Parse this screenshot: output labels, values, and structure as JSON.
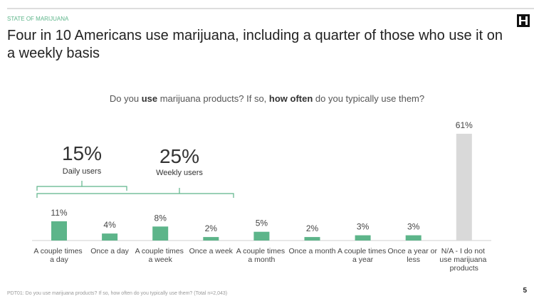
{
  "header": "STATE OF MARIJUANA",
  "title": "Four in 10 Americans use marijuana, including a quarter of those who use it on a weekly basis",
  "page_number": "5",
  "footnote": "PDT01: Do you use marijuana products? If so, how often do you typically use them? (Total n=2,043)",
  "chart_data": {
    "type": "bar",
    "subtitle_parts": [
      "Do you ",
      "use",
      " marijuana products? If so, ",
      "how often",
      " do you typically use them?"
    ],
    "categories": [
      "A couple times a day",
      "Once a day",
      "A couple times a week",
      "Once a week",
      "A couple times a month",
      "Once a month",
      "A couple times a year",
      "Once a year or less",
      "N/A - I do not use marijuana products"
    ],
    "values": [
      11,
      4,
      8,
      2,
      5,
      2,
      3,
      3,
      61
    ],
    "value_labels": [
      "11%",
      "4%",
      "8%",
      "2%",
      "5%",
      "2%",
      "3%",
      "3%",
      "61%"
    ],
    "colors": [
      "#5db58a",
      "#5db58a",
      "#5db58a",
      "#5db58a",
      "#5db58a",
      "#5db58a",
      "#5db58a",
      "#5db58a",
      "#d9d9d9"
    ],
    "annotations": [
      {
        "value": "15%",
        "label": "Daily users"
      },
      {
        "value": "25%",
        "label": "Weekly users"
      }
    ]
  }
}
